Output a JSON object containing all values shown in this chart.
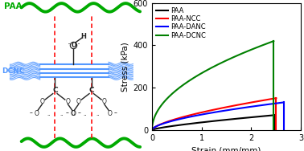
{
  "xlabel": "Strain (mm/mm)",
  "ylabel": "Stress (kPa)",
  "xlim": [
    0,
    3
  ],
  "ylim": [
    0,
    600
  ],
  "yticks": [
    0,
    200,
    400,
    600
  ],
  "xticks": [
    0,
    1,
    2,
    3
  ],
  "legend_labels": [
    "PAA",
    "PAA-NCC",
    "PAA-DANC",
    "PAA-DCNC"
  ],
  "legend_colors": [
    "black",
    "red",
    "blue",
    "green"
  ],
  "figsize": [
    3.78,
    1.88
  ],
  "dpi": 100,
  "paa_color": "#00aa00",
  "dcnc_color": "#5599ff",
  "bond_color": "#222222",
  "red_dash_color": "#ff2222",
  "curves": {
    "PAA": {
      "x_max": 2.48,
      "y_max": 70,
      "exp": 0.75,
      "color": "black",
      "drop": true
    },
    "PAA-NCC": {
      "x_max": 2.5,
      "y_max": 150,
      "exp": 0.65,
      "color": "red",
      "drop": true
    },
    "PAA-DANC": {
      "x_max": 2.65,
      "y_max": 130,
      "exp": 0.6,
      "color": "blue",
      "drop": true
    },
    "PAA-DCNC": {
      "x_max": 2.45,
      "y_max": 420,
      "exp": 0.5,
      "color": "green",
      "drop": true
    }
  }
}
